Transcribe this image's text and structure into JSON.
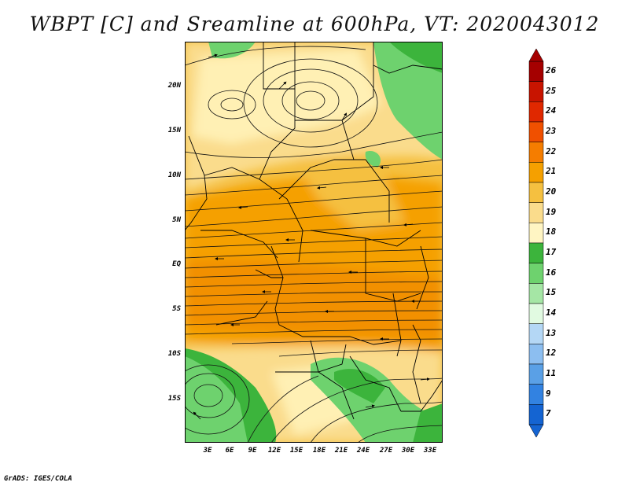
{
  "title": "WBPT [C] and Sreamline at 600hPa, VT: 2020043012",
  "y_axis_labels": [
    "20N",
    "15N",
    "10N",
    "5N",
    "EQ",
    "5S",
    "10S",
    "15S"
  ],
  "x_axis_labels": [
    "3E",
    "6E",
    "9E",
    "12E",
    "15E",
    "18E",
    "21E",
    "24E",
    "27E",
    "30E",
    "33E"
  ],
  "colorbar": {
    "labels": [
      "26",
      "25",
      "24",
      "23",
      "22",
      "21",
      "20",
      "19",
      "18",
      "17",
      "16",
      "15",
      "14",
      "13",
      "12",
      "11",
      "9",
      "7"
    ],
    "colors": [
      "#a50000",
      "#c81400",
      "#e02800",
      "#f05000",
      "#f57d00",
      "#f5a000",
      "#f5c040",
      "#fadc8c",
      "#fff5c3",
      "#3cb43c",
      "#6ed26e",
      "#a5e6a5",
      "#e1fae1",
      "#b4d7f5",
      "#8cbef0",
      "#5aa0e6",
      "#3282e1",
      "#1464d2"
    ]
  },
  "credit": "GrADS: IGES/COLA"
}
